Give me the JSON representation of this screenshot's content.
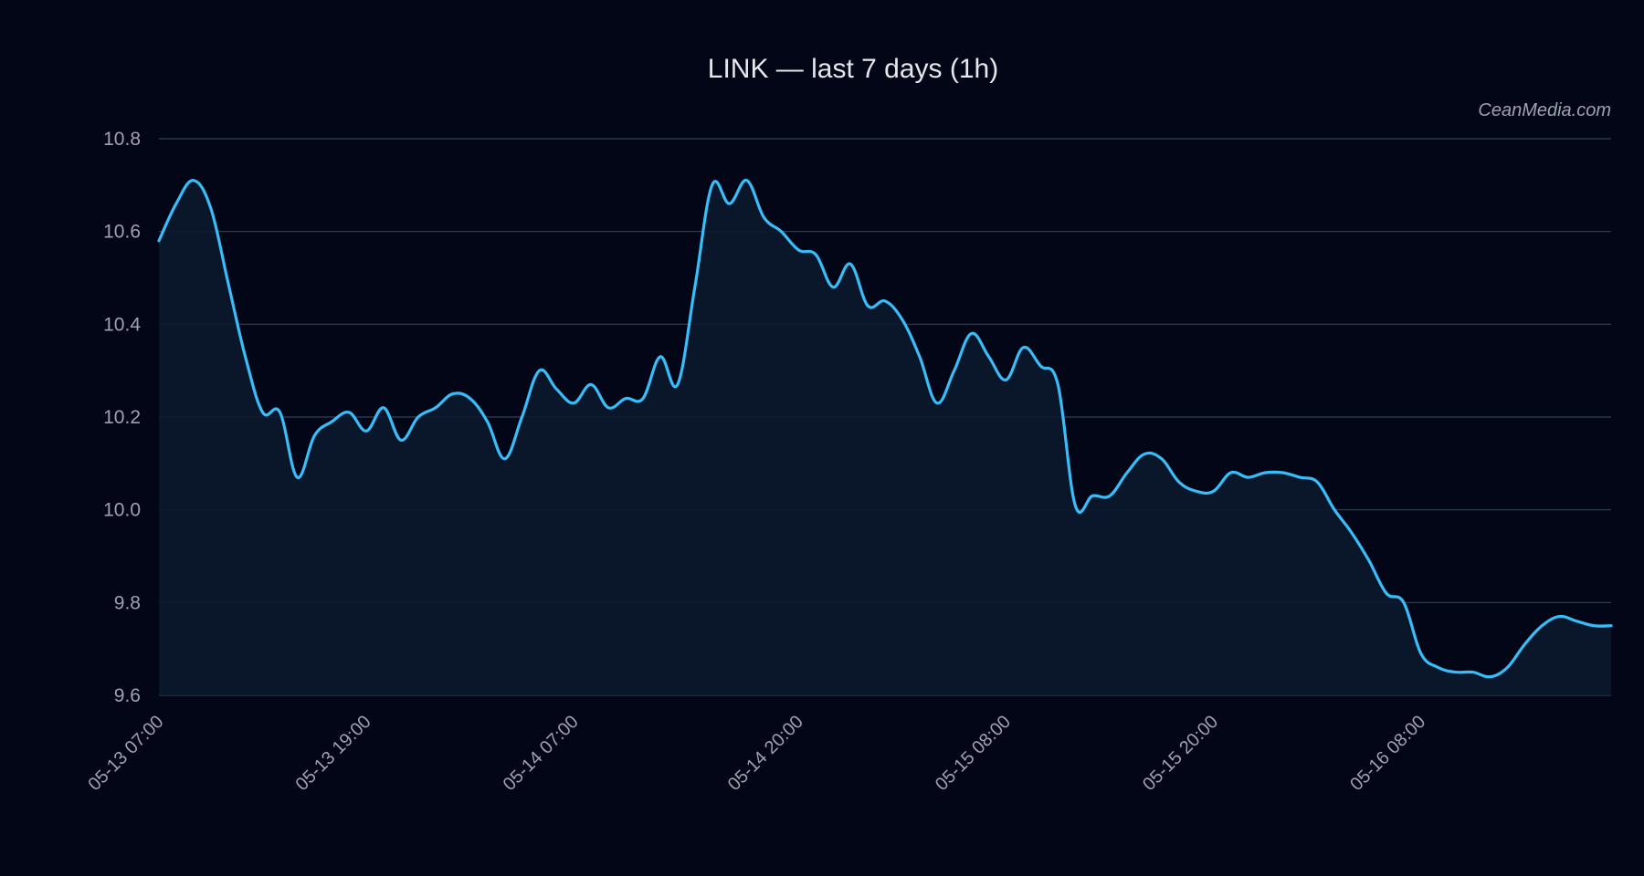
{
  "chart_data": {
    "type": "area",
    "title": "LINK — last 7 days (1h)",
    "watermark": "CeanMedia.com",
    "xlabel": "",
    "ylabel": "",
    "ylim": [
      9.6,
      10.8
    ],
    "yticks": [
      "9.6",
      "9.8",
      "10.0",
      "10.2",
      "10.4",
      "10.6",
      "10.8"
    ],
    "xticks": [
      "05-13 07:00",
      "05-13 19:00",
      "05-14 07:00",
      "05-14 20:00",
      "05-15 08:00",
      "05-15 20:00",
      "05-16 08:00"
    ],
    "grid": true,
    "colors": {
      "background": "#020617",
      "line": "#38bdf8",
      "fill": "#0b1a2e",
      "grid": "#334155"
    },
    "series": [
      {
        "x": [
          "05-13 07:00",
          "05-13 08:00",
          "05-13 09:00",
          "05-13 10:00",
          "05-13 11:00",
          "05-13 12:00",
          "05-13 13:00",
          "05-13 14:00",
          "05-13 15:00",
          "05-13 16:00",
          "05-13 17:00",
          "05-13 18:00",
          "05-13 19:00",
          "05-13 20:00",
          "05-13 21:00",
          "05-13 22:00",
          "05-13 23:00",
          "05-14 00:00",
          "05-14 01:00",
          "05-14 02:00",
          "05-14 03:00",
          "05-14 04:00",
          "05-14 05:00",
          "05-14 06:00",
          "05-14 07:00",
          "05-14 08:00",
          "05-14 09:00",
          "05-14 10:00",
          "05-14 11:00",
          "05-14 12:00",
          "05-14 13:00",
          "05-14 14:00",
          "05-14 15:00",
          "05-14 16:00",
          "05-14 17:00",
          "05-14 18:00",
          "05-14 19:00",
          "05-14 20:00",
          "05-14 21:00",
          "05-14 22:00",
          "05-14 23:00",
          "05-15 00:00",
          "05-15 01:00",
          "05-15 02:00",
          "05-15 03:00",
          "05-15 04:00",
          "05-15 05:00",
          "05-15 06:00",
          "05-15 07:00",
          "05-15 08:00",
          "05-15 09:00",
          "05-15 10:00",
          "05-15 11:00",
          "05-15 12:00",
          "05-15 13:00",
          "05-15 14:00",
          "05-15 15:00",
          "05-15 16:00",
          "05-15 17:00",
          "05-15 18:00",
          "05-15 19:00",
          "05-15 20:00",
          "05-15 21:00",
          "05-15 22:00",
          "05-15 23:00",
          "05-16 00:00",
          "05-16 01:00",
          "05-16 02:00",
          "05-16 03:00",
          "05-16 04:00",
          "05-16 05:00",
          "05-16 06:00",
          "05-16 07:00",
          "05-16 08:00",
          "05-16 09:00",
          "05-16 10:00",
          "05-16 11:00",
          "05-16 12:00",
          "05-16 13:00",
          "05-16 14:00",
          "05-16 15:00",
          "05-16 16:00",
          "05-16 17:00",
          "05-16 18:00",
          "05-16 19:00"
        ],
        "values": [
          10.58,
          10.66,
          10.71,
          10.65,
          10.49,
          10.33,
          10.21,
          10.21,
          10.07,
          10.16,
          10.19,
          10.21,
          10.17,
          10.22,
          10.15,
          10.2,
          10.22,
          10.25,
          10.24,
          10.19,
          10.11,
          10.2,
          10.3,
          10.26,
          10.23,
          10.27,
          10.22,
          10.24,
          10.24,
          10.33,
          10.27,
          10.48,
          10.7,
          10.66,
          10.71,
          10.63,
          10.6,
          10.56,
          10.55,
          10.48,
          10.53,
          10.44,
          10.45,
          10.41,
          10.33,
          10.23,
          10.3,
          10.38,
          10.33,
          10.28,
          10.35,
          10.31,
          10.27,
          10.01,
          10.03,
          10.03,
          10.08,
          10.12,
          10.11,
          10.06,
          10.04,
          10.04,
          10.08,
          10.07,
          10.08,
          10.08,
          10.07,
          10.06,
          10.0,
          9.95,
          9.89,
          9.82,
          9.8,
          9.69,
          9.66,
          9.65,
          9.65,
          9.64,
          9.66,
          9.71,
          9.75,
          9.77,
          9.76,
          9.75,
          9.75
        ]
      }
    ]
  }
}
